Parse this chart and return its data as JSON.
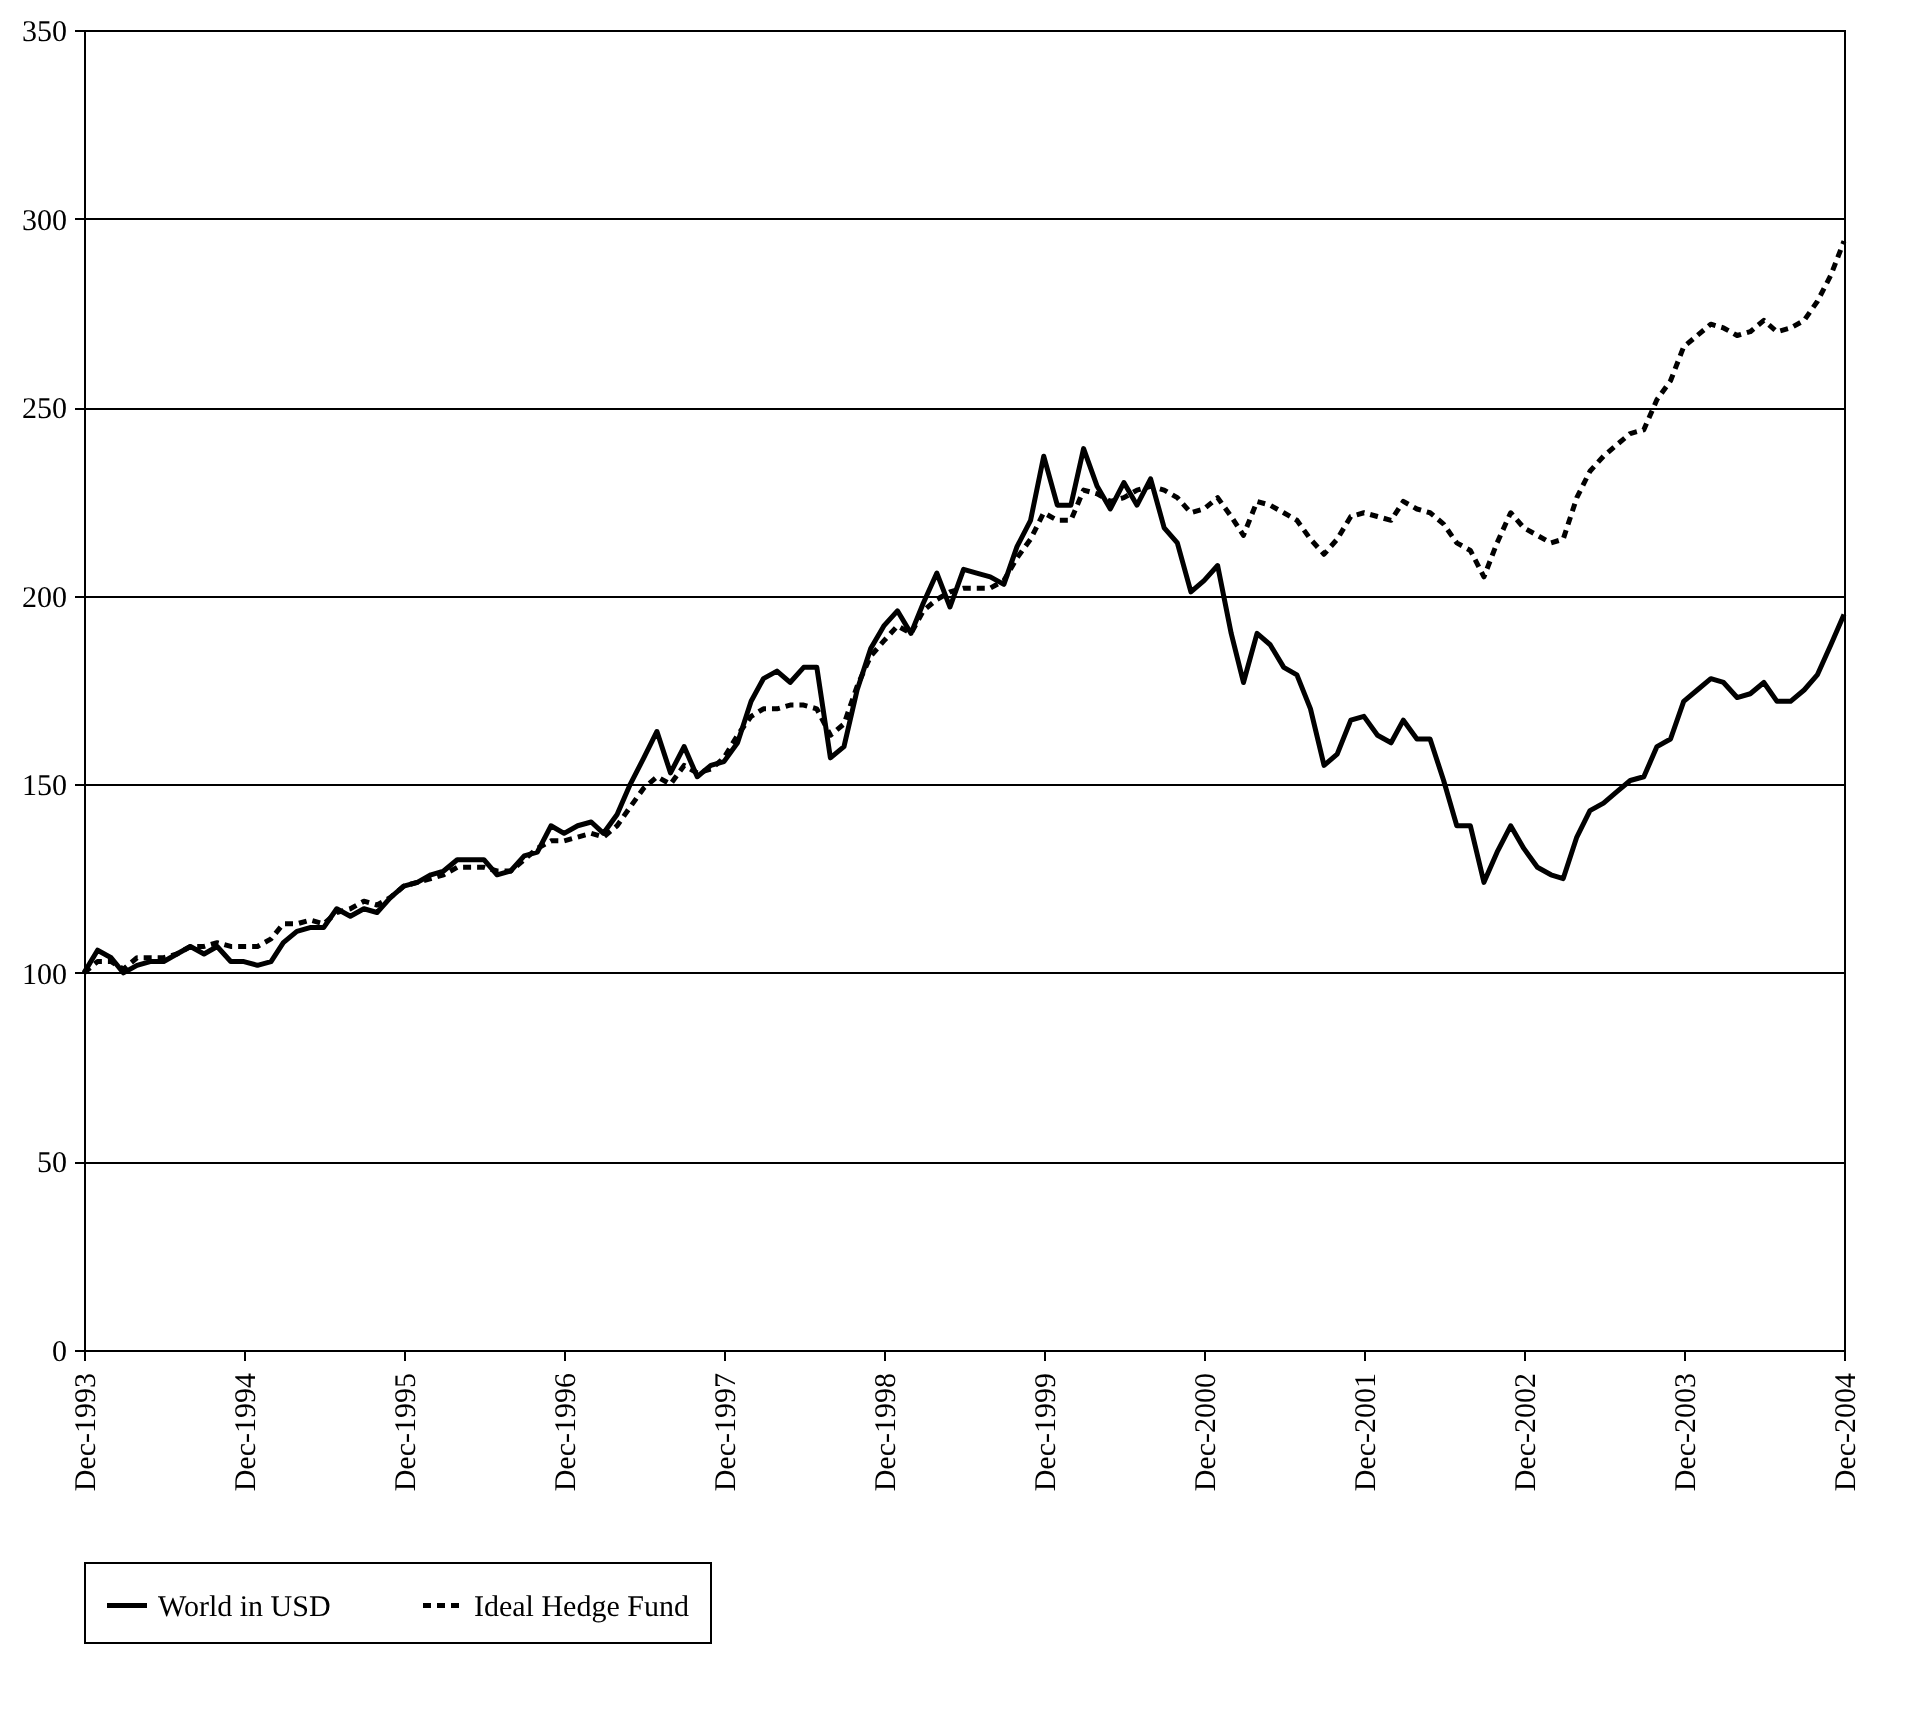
{
  "chart_data": {
    "type": "line",
    "ylim": [
      0,
      350
    ],
    "yticks": [
      0,
      50,
      100,
      150,
      200,
      250,
      300,
      350
    ],
    "grid": "y",
    "legend": "bottom",
    "xlim": [
      "1993-12",
      "2004-12"
    ],
    "xticks": [
      {
        "value": "1993-12",
        "label": "Dec-1993"
      },
      {
        "value": "1994-12",
        "label": "Dec-1994"
      },
      {
        "value": "1995-12",
        "label": "Dec-1995"
      },
      {
        "value": "1996-12",
        "label": "Dec-1996"
      },
      {
        "value": "1997-12",
        "label": "Dec-1997"
      },
      {
        "value": "1998-12",
        "label": "Dec-1998"
      },
      {
        "value": "1999-12",
        "label": "Dec-1999"
      },
      {
        "value": "2000-12",
        "label": "Dec-2000"
      },
      {
        "value": "2001-12",
        "label": "Dec-2001"
      },
      {
        "value": "2002-12",
        "label": "Dec-2002"
      },
      {
        "value": "2003-12",
        "label": "Dec-2003"
      },
      {
        "value": "2004-12",
        "label": "Dec-2004"
      }
    ],
    "x": [
      "1993-12",
      "1994-01",
      "1994-02",
      "1994-03",
      "1994-04",
      "1994-05",
      "1994-06",
      "1994-07",
      "1994-08",
      "1994-09",
      "1994-10",
      "1994-11",
      "1994-12",
      "1995-01",
      "1995-02",
      "1995-03",
      "1995-04",
      "1995-05",
      "1995-06",
      "1995-07",
      "1995-08",
      "1995-09",
      "1995-10",
      "1995-11",
      "1995-12",
      "1996-01",
      "1996-02",
      "1996-03",
      "1996-04",
      "1996-05",
      "1996-06",
      "1996-07",
      "1996-08",
      "1996-09",
      "1996-10",
      "1996-11",
      "1996-12",
      "1997-01",
      "1997-02",
      "1997-03",
      "1997-04",
      "1997-05",
      "1997-06",
      "1997-07",
      "1997-08",
      "1997-09",
      "1997-10",
      "1997-11",
      "1997-12",
      "1998-01",
      "1998-02",
      "1998-03",
      "1998-04",
      "1998-05",
      "1998-06",
      "1998-07",
      "1998-08",
      "1998-09",
      "1998-10",
      "1998-11",
      "1998-12",
      "1999-01",
      "1999-02",
      "1999-03",
      "1999-04",
      "1999-05",
      "1999-06",
      "1999-07",
      "1999-08",
      "1999-09",
      "1999-10",
      "1999-11",
      "1999-12",
      "2000-01",
      "2000-02",
      "2000-03",
      "2000-04",
      "2000-05",
      "2000-06",
      "2000-07",
      "2000-08",
      "2000-09",
      "2000-10",
      "2000-11",
      "2000-12",
      "2001-01",
      "2001-02",
      "2001-03",
      "2001-04",
      "2001-05",
      "2001-06",
      "2001-07",
      "2001-08",
      "2001-09",
      "2001-10",
      "2001-11",
      "2001-12",
      "2002-01",
      "2002-02",
      "2002-03",
      "2002-04",
      "2002-05",
      "2002-06",
      "2002-07",
      "2002-08",
      "2002-09",
      "2002-10",
      "2002-11",
      "2002-12",
      "2003-01",
      "2003-02",
      "2003-03",
      "2003-04",
      "2003-05",
      "2003-06",
      "2003-07",
      "2003-08",
      "2003-09",
      "2003-10",
      "2003-11",
      "2003-12",
      "2004-01",
      "2004-02",
      "2004-03",
      "2004-04",
      "2004-05",
      "2004-06",
      "2004-07",
      "2004-08",
      "2004-09",
      "2004-10",
      "2004-11",
      "2004-12"
    ],
    "series": [
      {
        "name": "World in USD",
        "color": "#000000",
        "line_style": "solid",
        "values": [
          100,
          106,
          104,
          100,
          102,
          103,
          103,
          105,
          107,
          105,
          107,
          103,
          103,
          102,
          103,
          108,
          111,
          112,
          112,
          117,
          115,
          117,
          116,
          120,
          123,
          124,
          126,
          127,
          130,
          130,
          130,
          126,
          127,
          131,
          132,
          139,
          137,
          139,
          140,
          137,
          142,
          150,
          157,
          164,
          153,
          160,
          152,
          155,
          156,
          161,
          172,
          178,
          180,
          177,
          181,
          181,
          157,
          160,
          175,
          186,
          192,
          196,
          190,
          198,
          206,
          197,
          207,
          206,
          205,
          203,
          213,
          220,
          237,
          224,
          224,
          239,
          229,
          223,
          230,
          224,
          231,
          218,
          214,
          201,
          204,
          208,
          190,
          177,
          190,
          187,
          181,
          179,
          170,
          155,
          158,
          167,
          168,
          163,
          161,
          167,
          162,
          162,
          151,
          139,
          139,
          124,
          132,
          139,
          133,
          128,
          126,
          125,
          136,
          143,
          145,
          148,
          151,
          152,
          160,
          162,
          172,
          175,
          178,
          177,
          173,
          174,
          177,
          172,
          172,
          175,
          179,
          187,
          195
        ]
      },
      {
        "name": "Ideal Hedge Fund",
        "color": "#000000",
        "line_style": "dashed",
        "values": [
          100,
          103,
          103,
          101,
          104,
          104,
          104,
          105,
          107,
          107,
          108,
          107,
          107,
          107,
          109,
          113,
          113,
          114,
          113,
          116,
          117,
          119,
          118,
          120,
          123,
          124,
          125,
          126,
          128,
          128,
          128,
          127,
          127,
          130,
          133,
          135,
          135,
          136,
          137,
          136,
          139,
          144,
          149,
          152,
          150,
          155,
          153,
          154,
          157,
          163,
          168,
          170,
          170,
          171,
          171,
          170,
          163,
          166,
          176,
          184,
          188,
          192,
          190,
          196,
          199,
          201,
          202,
          202,
          202,
          204,
          210,
          215,
          222,
          220,
          220,
          228,
          227,
          225,
          226,
          228,
          229,
          228,
          226,
          222,
          223,
          226,
          221,
          216,
          225,
          224,
          222,
          220,
          215,
          211,
          215,
          221,
          222,
          221,
          220,
          225,
          223,
          222,
          219,
          214,
          212,
          205,
          214,
          222,
          218,
          216,
          214,
          215,
          226,
          233,
          237,
          240,
          243,
          244,
          252,
          257,
          266,
          269,
          272,
          271,
          269,
          270,
          273,
          270,
          271,
          273,
          278,
          285,
          294
        ]
      }
    ]
  }
}
